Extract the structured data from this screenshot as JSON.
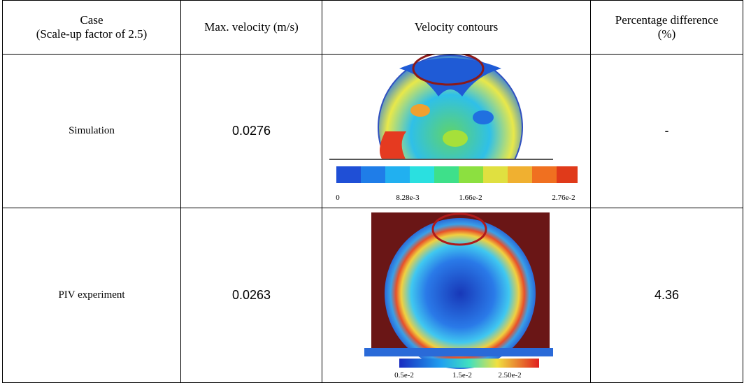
{
  "table": {
    "header": [
      "Case\n(Scale-up factor of 2.5)",
      "Max. velocity (m/s)",
      "Velocity contours",
      "Percentage difference\n(%)"
    ],
    "rows": [
      {
        "case": "Simulation",
        "max_velocity": "0.0276",
        "colorbar_labels": [
          "0",
          "8.28e-3",
          "1.66e-2",
          "2.76e-2"
        ],
        "difference": "-"
      },
      {
        "case": "PIV experiment",
        "max_velocity": "0.0263",
        "colorbar_labels": [
          "0.5e-2",
          "1.5e-2",
          "2.50e-2"
        ],
        "difference": "4.36"
      }
    ]
  }
}
